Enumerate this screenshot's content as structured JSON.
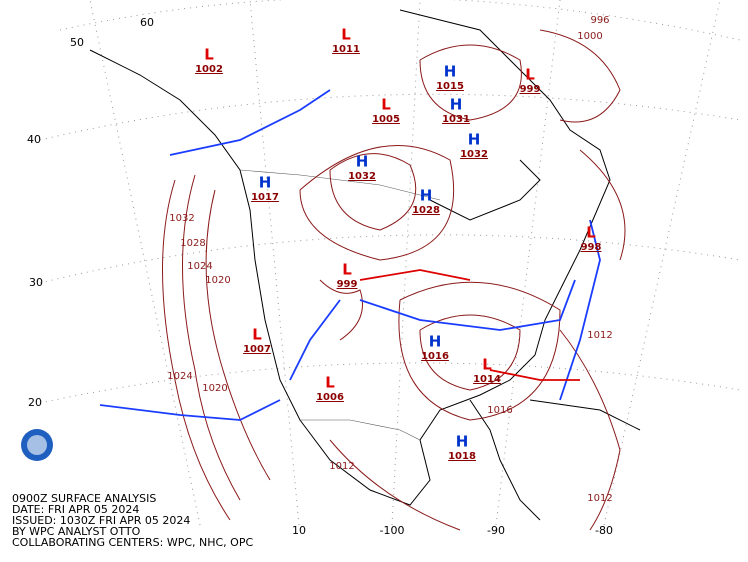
{
  "map": {
    "caption": [
      "0900Z SURFACE ANALYSIS",
      "DATE: FRI APR 05 2024",
      "ISSUED: 1030Z FRI APR 05 2024",
      "BY WPC ANALYST OTTO",
      "COLLABORATING CENTERS: WPC, NHC, OPC"
    ],
    "grid_labels": [
      "60",
      "50",
      "40",
      "30",
      "20",
      "10",
      "-100",
      "-90",
      "-80"
    ],
    "pressure_systems": [
      {
        "symbol": "H",
        "value": 1032
      },
      {
        "symbol": "H",
        "value": 1028
      },
      {
        "symbol": "H",
        "value": 1032
      },
      {
        "symbol": "H",
        "value": 1017
      },
      {
        "symbol": "H",
        "value": 1015
      },
      {
        "symbol": "H",
        "value": 1031
      },
      {
        "symbol": "H",
        "value": 1016
      },
      {
        "symbol": "H",
        "value": 1018
      },
      {
        "symbol": "L",
        "value": 1011
      },
      {
        "symbol": "L",
        "value": 1002
      },
      {
        "symbol": "L",
        "value": 999
      },
      {
        "symbol": "L",
        "value": 1007
      },
      {
        "symbol": "L",
        "value": 1006
      },
      {
        "symbol": "L",
        "value": 1014
      },
      {
        "symbol": "L",
        "value": 998
      },
      {
        "symbol": "L",
        "value": 999
      },
      {
        "symbol": "L",
        "value": 1005
      }
    ],
    "isobar_labels": [
      1032,
      1028,
      1024,
      1020,
      1024,
      1020,
      1016,
      1012,
      1012,
      1000,
      996,
      1012
    ]
  }
}
